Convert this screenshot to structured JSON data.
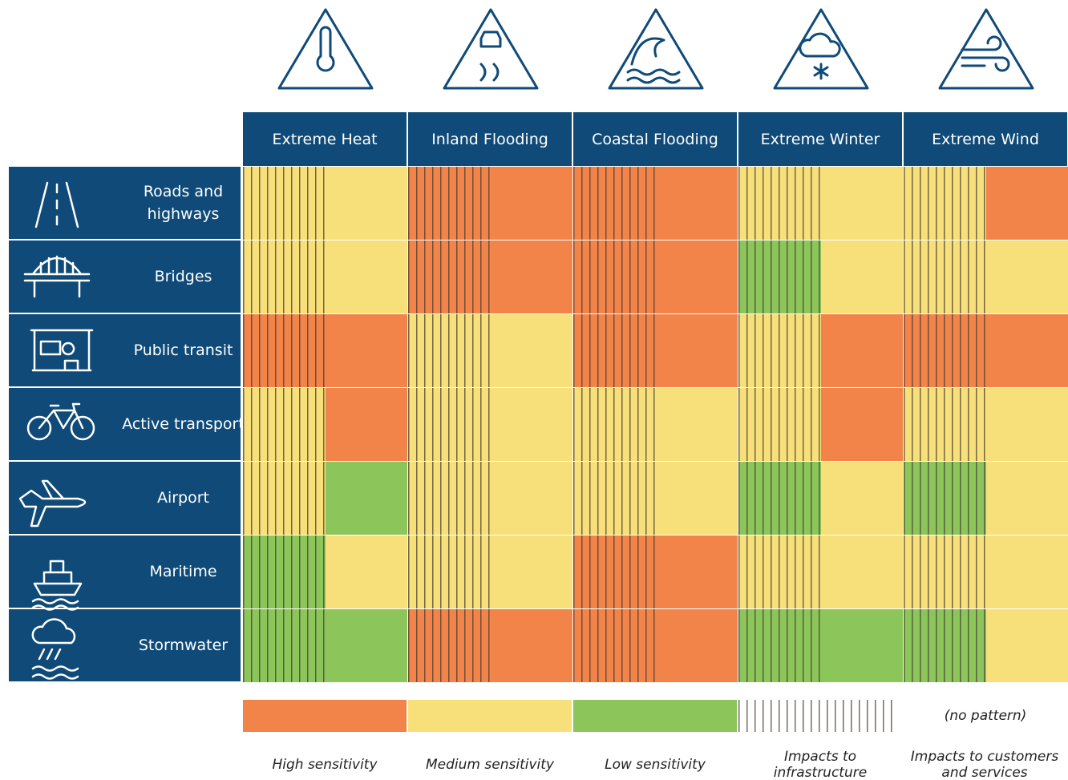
{
  "columns": [
    "Extreme Heat",
    "Inland Flooding",
    "Coastal Flooding",
    "Extreme Winter",
    "Extreme Wind"
  ],
  "rows": [
    {
      "label": "Roads and highways",
      "cells": [
        [
          1,
          1
        ],
        [
          0,
          0
        ],
        [
          0,
          0
        ],
        [
          1,
          1
        ],
        [
          1,
          0
        ]
      ]
    },
    {
      "label": "Bridges",
      "cells": [
        [
          1,
          1
        ],
        [
          0,
          0
        ],
        [
          0,
          0
        ],
        [
          2,
          1
        ],
        [
          1,
          1
        ]
      ]
    },
    {
      "label": "Public transit",
      "cells": [
        [
          0,
          0
        ],
        [
          1,
          1
        ],
        [
          0,
          0
        ],
        [
          1,
          0
        ],
        [
          0,
          0
        ]
      ]
    },
    {
      "label": "Active transport",
      "cells": [
        [
          1,
          0
        ],
        [
          1,
          1
        ],
        [
          1,
          1
        ],
        [
          1,
          0
        ],
        [
          1,
          1
        ]
      ]
    },
    {
      "label": "Airport",
      "cells": [
        [
          1,
          2
        ],
        [
          1,
          1
        ],
        [
          1,
          1
        ],
        [
          2,
          1
        ],
        [
          2,
          1
        ]
      ]
    },
    {
      "label": "Maritime",
      "cells": [
        [
          2,
          1
        ],
        [
          1,
          1
        ],
        [
          0,
          0
        ],
        [
          1,
          1
        ],
        [
          1,
          1
        ]
      ]
    },
    {
      "label": "Stormwater",
      "cells": [
        [
          2,
          2
        ],
        [
          0,
          0
        ],
        [
          0,
          0
        ],
        [
          2,
          2
        ],
        [
          2,
          1
        ]
      ]
    }
  ],
  "legend": {
    "levels": [
      {
        "label": "High sensitivity",
        "color": "#f2844a"
      },
      {
        "label": "Medium sensitivity",
        "color": "#f7e07a"
      },
      {
        "label": "Low sensitivity",
        "color": "#8cc65a"
      }
    ],
    "patterns": [
      {
        "label": "Impacts to infrastructure"
      },
      {
        "label": "Impacts to customers and services",
        "note": "(no pattern)"
      }
    ]
  }
}
